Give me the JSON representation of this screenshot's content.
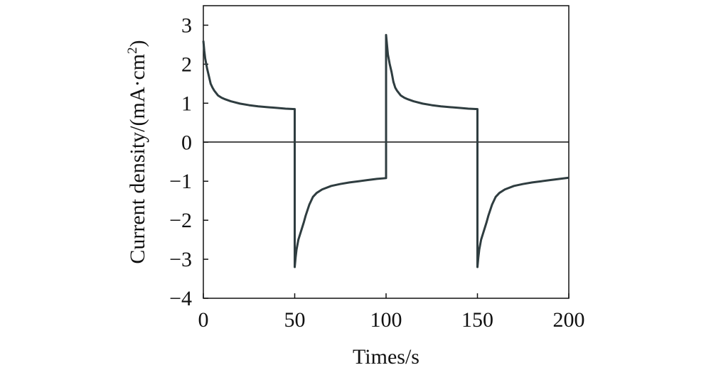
{
  "chart_data": {
    "type": "line",
    "title": "",
    "xlabel": "Times/s",
    "ylabel": "Current density/(mA·cm",
    "ylabel_sup": "2",
    "ylabel_close": ")",
    "xlim": [
      0,
      200
    ],
    "ylim": [
      -4,
      3.5
    ],
    "xticks": [
      0,
      50,
      100,
      150,
      200
    ],
    "xtick_labels": [
      "0",
      "50",
      "100",
      "150",
      "200"
    ],
    "yticks": [
      3,
      2,
      1,
      0,
      -1,
      -2,
      -3,
      -4
    ],
    "ytick_labels": [
      "3",
      "2",
      "1",
      "0",
      "−1",
      "−2",
      "−3",
      "−4"
    ],
    "grid": false,
    "zero_line": true,
    "series": [
      {
        "color": "#2f3d40",
        "x": [
          0,
          0.5,
          1,
          2,
          3,
          4,
          5,
          6,
          8,
          10,
          12,
          15,
          20,
          25,
          30,
          35,
          40,
          45,
          50,
          50,
          50.5,
          51,
          52,
          53,
          54,
          55,
          56,
          58,
          60,
          62,
          65,
          70,
          75,
          80,
          85,
          90,
          95,
          100,
          100,
          100.5,
          101,
          102,
          103,
          104,
          105,
          106,
          108,
          110,
          112,
          115,
          120,
          125,
          130,
          135,
          140,
          145,
          150,
          150,
          150.5,
          151,
          152,
          153,
          154,
          155,
          156,
          158,
          160,
          162,
          165,
          170,
          175,
          180,
          185,
          190,
          195,
          200
        ],
        "y": [
          2.6,
          2.35,
          2.15,
          1.9,
          1.7,
          1.5,
          1.4,
          1.32,
          1.2,
          1.14,
          1.1,
          1.05,
          0.99,
          0.95,
          0.92,
          0.9,
          0.88,
          0.86,
          0.85,
          -3.2,
          -2.95,
          -2.75,
          -2.5,
          -2.35,
          -2.2,
          -2.05,
          -1.88,
          -1.6,
          -1.4,
          -1.3,
          -1.21,
          -1.12,
          -1.07,
          -1.03,
          -1.0,
          -0.97,
          -0.94,
          -0.92,
          2.75,
          2.5,
          2.25,
          2.0,
          1.8,
          1.55,
          1.4,
          1.32,
          1.2,
          1.14,
          1.1,
          1.05,
          0.99,
          0.95,
          0.92,
          0.9,
          0.88,
          0.86,
          0.85,
          -3.2,
          -2.95,
          -2.75,
          -2.5,
          -2.35,
          -2.2,
          -2.05,
          -1.88,
          -1.6,
          -1.4,
          -1.3,
          -1.21,
          -1.12,
          -1.07,
          -1.03,
          -1.0,
          -0.97,
          -0.94,
          -0.91
        ]
      }
    ]
  }
}
